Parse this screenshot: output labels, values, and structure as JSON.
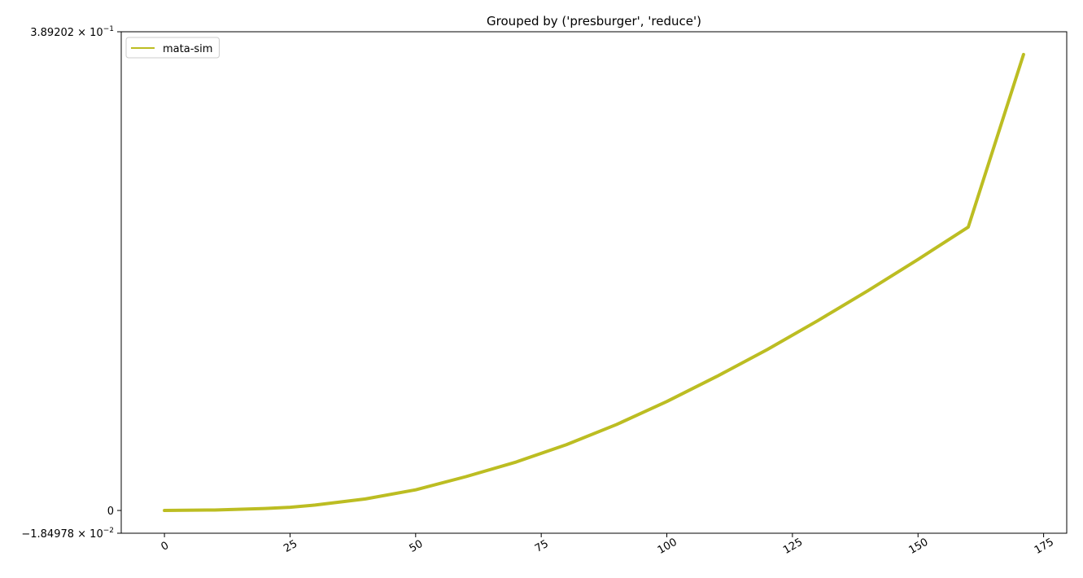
{
  "chart_data": {
    "type": "line",
    "title": "Grouped by ('presburger', 'reduce')",
    "xlabel": "",
    "ylabel": "",
    "xlim": [
      -8.6,
      179.6
    ],
    "ylim": [
      -0.0184978,
      0.389202
    ],
    "x_ticks": [
      0,
      25,
      50,
      75,
      100,
      125,
      150,
      175
    ],
    "y_ticks": [
      {
        "value": 0.389202,
        "mantissa": "3.89202",
        "exponent": "−1"
      },
      {
        "value": 0.0,
        "label": "0"
      },
      {
        "value": -0.0184978,
        "mantissa": "−1.84978",
        "exponent": "−2"
      }
    ],
    "grid": false,
    "legend": {
      "position": "top-left",
      "entries": [
        "mata-sim"
      ]
    },
    "series": [
      {
        "name": "mata-sim",
        "color": "#bcbd22",
        "x": [
          0,
          10,
          20,
          25,
          30,
          40,
          50,
          60,
          70,
          80,
          90,
          100,
          110,
          120,
          130,
          140,
          150,
          160,
          171
        ],
        "y": [
          0.0,
          0.0004,
          0.0016,
          0.0026,
          0.0044,
          0.0094,
          0.0168,
          0.0275,
          0.0394,
          0.0535,
          0.0699,
          0.0886,
          0.1091,
          0.1308,
          0.1542,
          0.1786,
          0.2041,
          0.2304,
          0.3707
        ]
      }
    ]
  }
}
